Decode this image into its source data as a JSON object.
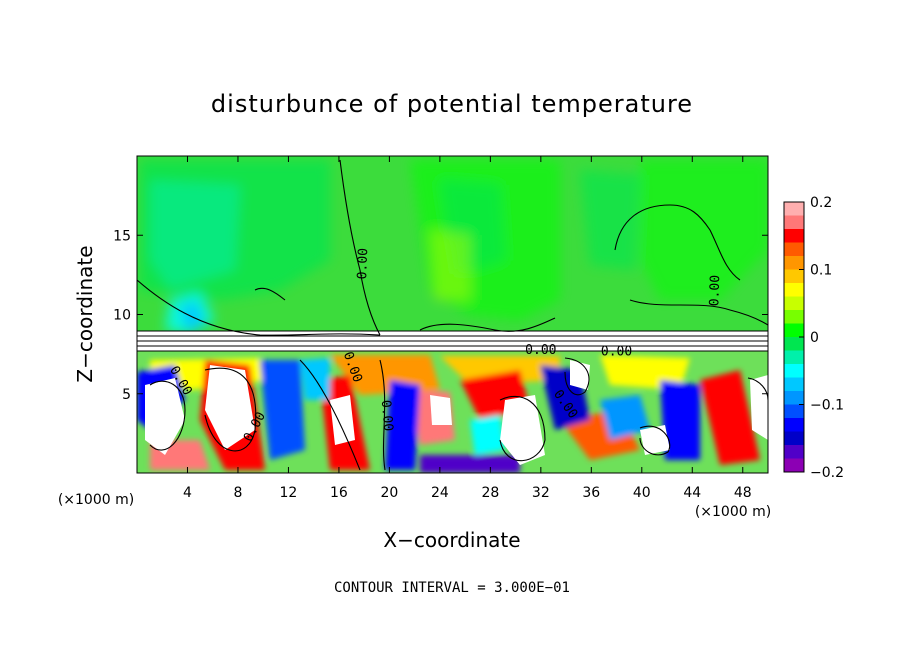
{
  "chart_data": {
    "type": "heatmap",
    "title": "disturbunce of potential temperature",
    "xlabel": "X−coordinate",
    "ylabel": "Z−coordinate",
    "x_unit_label": "(×1000 m)",
    "z_unit_label": "(×1000 m)",
    "xlim": [
      0,
      50
    ],
    "ylim": [
      0,
      20
    ],
    "x_ticks": [
      {
        "value": 4,
        "label": "4"
      },
      {
        "value": 8,
        "label": "8"
      },
      {
        "value": 12,
        "label": "12"
      },
      {
        "value": 16,
        "label": "16"
      },
      {
        "value": 20,
        "label": "20"
      },
      {
        "value": 24,
        "label": "24"
      },
      {
        "value": 28,
        "label": "28"
      },
      {
        "value": 32,
        "label": "32"
      },
      {
        "value": 36,
        "label": "36"
      },
      {
        "value": 40,
        "label": "40"
      },
      {
        "value": 44,
        "label": "44"
      },
      {
        "value": 48,
        "label": "48"
      }
    ],
    "y_ticks": [
      {
        "value": 5,
        "label": "5"
      },
      {
        "value": 10,
        "label": "10"
      },
      {
        "value": 15,
        "label": "15"
      }
    ],
    "colorbar": {
      "min": -0.2,
      "max": 0.2,
      "ticks": [
        {
          "value": 0.2,
          "label": "0.2"
        },
        {
          "value": 0.1,
          "label": "0.1"
        },
        {
          "value": 0,
          "label": "0"
        },
        {
          "value": -0.1,
          "label": "−0.1"
        },
        {
          "value": -0.2,
          "label": "−0.2"
        }
      ],
      "colors": [
        "#ffafaf",
        "#ff7878",
        "#ff0000",
        "#ff5a00",
        "#ff9600",
        "#ffc800",
        "#ffff00",
        "#c8ff00",
        "#78ff00",
        "#00ff00",
        "#00e650",
        "#00f0aa",
        "#00ffff",
        "#00c8ff",
        "#0096ff",
        "#0050ff",
        "#0000ff",
        "#0000c8",
        "#5000c8",
        "#8c00b4"
      ]
    },
    "background_color": "#3cdc3c",
    "contour_labels": [
      {
        "text": "0.00",
        "x": 18.2,
        "z": 13.2,
        "rotate": -88
      },
      {
        "text": "0.00",
        "x": 46.1,
        "z": 11.5,
        "rotate": -88
      },
      {
        "text": "0.00",
        "x": 16.8,
        "z": 6.6,
        "rotate": 70
      },
      {
        "text": "0.00",
        "x": 3.2,
        "z": 5.7,
        "rotate": 60
      },
      {
        "text": "0.00",
        "x": 9.6,
        "z": 2.8,
        "rotate": -62
      },
      {
        "text": "0.00",
        "x": 19.5,
        "z": 3.6,
        "rotate": 85
      },
      {
        "text": "0.00",
        "x": 33.7,
        "z": 4.2,
        "rotate": 55
      },
      {
        "text": "0.00",
        "x": 32.0,
        "z": 7.5,
        "rotate": 0
      },
      {
        "text": "0.00",
        "x": 38.0,
        "z": 7.4,
        "rotate": 0
      }
    ],
    "contour_interval_label": "CONTOUR INTERVAL = 3.000E−01"
  }
}
